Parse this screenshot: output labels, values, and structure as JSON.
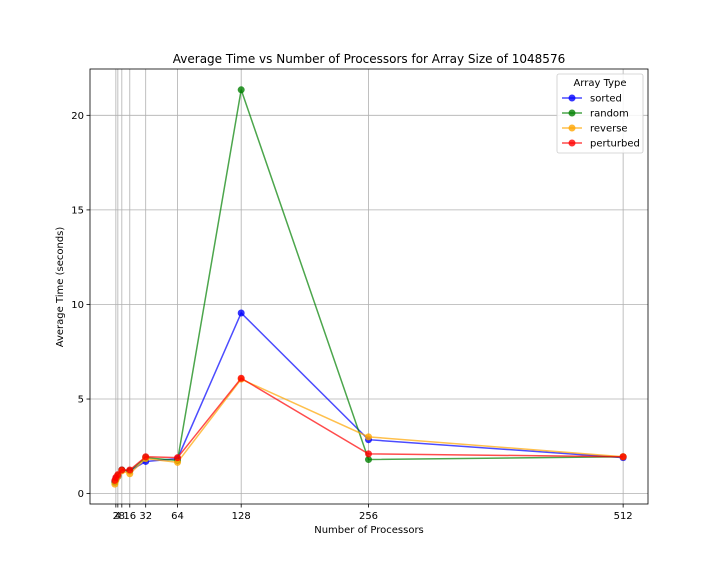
{
  "chart_data": {
    "type": "line",
    "title": "Average Time vs Number of Processors for Array Size of 1048576",
    "xlabel": "Number of Processors",
    "ylabel": "Average Time (seconds)",
    "x": [
      1,
      2,
      4,
      8,
      16,
      32,
      64,
      128,
      256,
      512
    ],
    "xticks": [
      2,
      4,
      8,
      16,
      32,
      64,
      128,
      256,
      512
    ],
    "xtick_labels": [
      "2",
      "4",
      "8",
      "16",
      "32",
      "64",
      "128",
      "256",
      "512"
    ],
    "yticks": [
      0,
      5,
      10,
      15,
      20
    ],
    "xlim": [
      -24,
      537
    ],
    "ylim": [
      -0.55,
      22.45
    ],
    "grid": true,
    "legend": {
      "title": "Array Type",
      "placement": "top-right"
    },
    "series": [
      {
        "name": "sorted",
        "color": "#0000ff",
        "values": [
          0.65,
          0.8,
          0.9,
          1.25,
          1.2,
          1.7,
          1.85,
          9.55,
          2.85,
          1.9
        ]
      },
      {
        "name": "random",
        "color": "#008000",
        "values": [
          0.6,
          0.75,
          0.95,
          1.25,
          1.2,
          1.9,
          1.75,
          21.35,
          1.8,
          1.95
        ]
      },
      {
        "name": "reverse",
        "color": "#ffa500",
        "values": [
          0.5,
          0.7,
          0.9,
          1.2,
          1.05,
          1.85,
          1.65,
          6.05,
          3.0,
          1.95
        ]
      },
      {
        "name": "perturbed",
        "color": "#ff0000",
        "values": [
          0.7,
          0.85,
          1.0,
          1.25,
          1.25,
          1.95,
          1.9,
          6.1,
          2.1,
          1.95
        ]
      }
    ]
  }
}
